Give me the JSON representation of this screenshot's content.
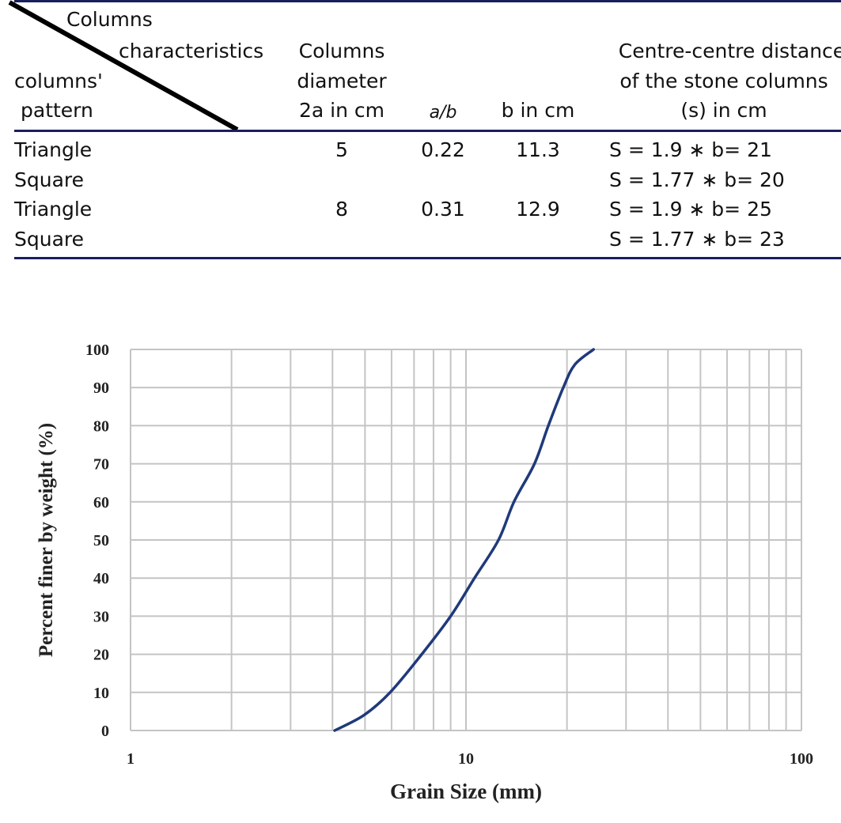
{
  "table": {
    "header": {
      "diagonal_top": [
        "Columns",
        "characteristics"
      ],
      "diagonal_bottom": [
        "columns'",
        "pattern"
      ],
      "diameter": [
        "Columns",
        "diameter",
        "2a in cm"
      ],
      "ratio": "a/b",
      "b": "b in cm",
      "distance": [
        "Centre-centre distance",
        "of the stone columns",
        "(s) in cm"
      ]
    },
    "rows": [
      {
        "pattern": "Triangle",
        "diameter": "5",
        "ratio": "0.22",
        "b": "11.3",
        "distance": "S = 1.9  ∗  b= 21"
      },
      {
        "pattern": "Square",
        "diameter": "",
        "ratio": "",
        "b": "",
        "distance": "S = 1.77  ∗  b= 20"
      },
      {
        "pattern": "Triangle",
        "diameter": "8",
        "ratio": "0.31",
        "b": "12.9",
        "distance": "S = 1.9 ∗ b= 25"
      },
      {
        "pattern": "Square",
        "diameter": "",
        "ratio": "",
        "b": "",
        "distance": "S = 1.77 ∗ b= 23"
      }
    ],
    "rule_color": "#1a1f5e"
  },
  "chart_data": {
    "type": "line",
    "xlabel": "Grain Size (mm)",
    "ylabel": "Percent finer by weight (%)",
    "x_scale": "log",
    "xlim": [
      1,
      100
    ],
    "ylim": [
      0,
      100
    ],
    "x_ticks": [
      "1",
      "10",
      "100"
    ],
    "y_ticks": [
      "0",
      "10",
      "20",
      "30",
      "40",
      "50",
      "60",
      "70",
      "80",
      "90",
      "100"
    ],
    "grid": true,
    "line_color": "#1f3a7a",
    "series": [
      {
        "x": [
          4.06,
          4.96,
          5.94,
          7.38,
          9.0,
          10.6,
          12.5,
          13.9,
          16.0,
          17.6,
          19.5,
          21.1,
          24.0
        ],
        "y": [
          0,
          4,
          10,
          20,
          30,
          40,
          50,
          60,
          70,
          80,
          90,
          96,
          100
        ]
      }
    ]
  }
}
